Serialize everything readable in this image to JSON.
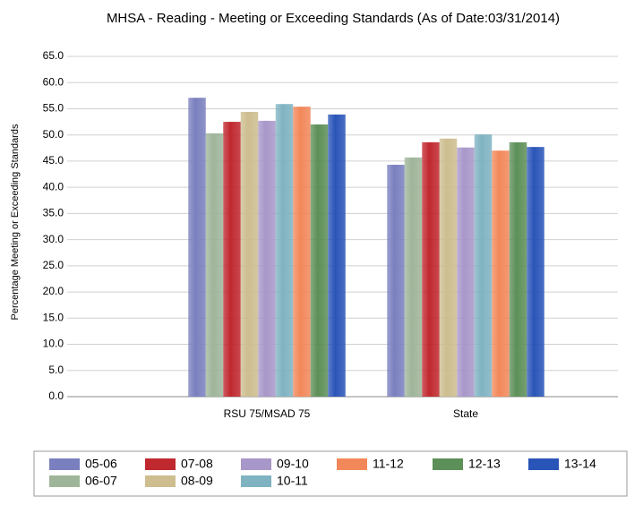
{
  "chart_data": {
    "type": "bar",
    "title": "MHSA - Reading - Meeting or Exceeding Standards (As of Date:03/31/2014)",
    "y_label": "Percentage Meeting or Exceeding Standards",
    "categories": [
      "RSU 75/MSAD 75",
      "State"
    ],
    "series": [
      {
        "name": "05-06",
        "color": "#7a80bf",
        "values": [
          57.1,
          44.3
        ]
      },
      {
        "name": "06-07",
        "color": "#9fb59a",
        "values": [
          50.3,
          45.7
        ]
      },
      {
        "name": "07-08",
        "color": "#c0282f",
        "values": [
          52.5,
          48.6
        ]
      },
      {
        "name": "08-09",
        "color": "#cdbd8f",
        "values": [
          54.4,
          49.3
        ]
      },
      {
        "name": "09-10",
        "color": "#a897c9",
        "values": [
          52.7,
          47.6
        ]
      },
      {
        "name": "10-11",
        "color": "#7fb3c1",
        "values": [
          55.9,
          50.1
        ]
      },
      {
        "name": "11-12",
        "color": "#f2885a",
        "values": [
          55.4,
          47.0
        ]
      },
      {
        "name": "12-13",
        "color": "#5d8f58",
        "values": [
          52.0,
          48.6
        ]
      },
      {
        "name": "13-14",
        "color": "#2a55b8",
        "values": [
          53.9,
          47.7
        ]
      }
    ],
    "ylim": [
      0,
      65
    ],
    "yticks": [
      {
        "value": 0,
        "label": "0.0"
      },
      {
        "value": 5,
        "label": "5.0"
      },
      {
        "value": 10,
        "label": "10.0"
      },
      {
        "value": 15,
        "label": "15.0"
      },
      {
        "value": 20,
        "label": "20.0"
      },
      {
        "value": 25,
        "label": "25.0"
      },
      {
        "value": 30,
        "label": "30.0"
      },
      {
        "value": 35,
        "label": "35.0"
      },
      {
        "value": 40,
        "label": "40.0"
      },
      {
        "value": 45,
        "label": "45.0"
      },
      {
        "value": 50,
        "label": "50.0"
      },
      {
        "value": 55,
        "label": "55.0"
      },
      {
        "value": 60,
        "label": "60.0"
      },
      {
        "value": 65,
        "label": "65.0"
      }
    ],
    "grid": true
  }
}
